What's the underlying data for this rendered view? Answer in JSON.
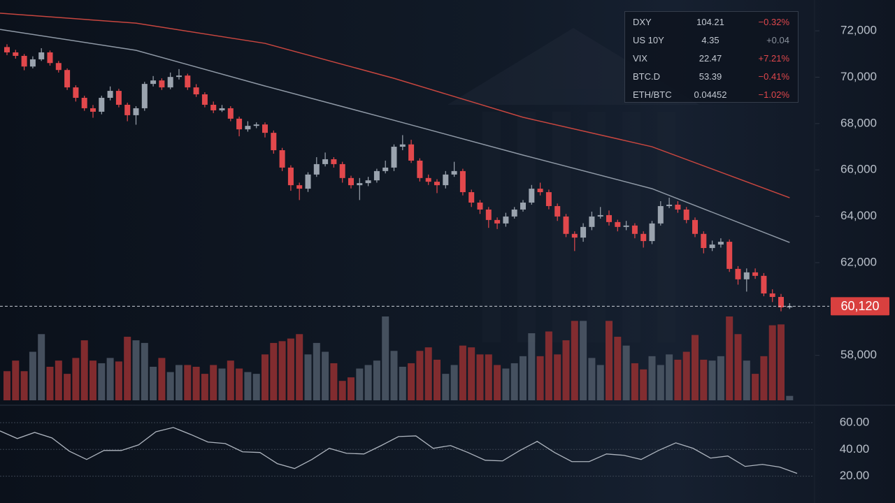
{
  "chart_data": [
    {
      "type": "candlestick",
      "open": [
        71300,
        71070,
        70920,
        70460,
        70770,
        71070,
        70610,
        70310,
        69560,
        69110,
        68660,
        68510,
        69110,
        69410,
        68810,
        68360,
        68660,
        69710,
        69860,
        69560,
        70010,
        70070,
        69560,
        69260,
        68810,
        68570,
        68660,
        68210,
        67750,
        67900,
        67960,
        67600,
        66850,
        66100,
        65340,
        65190,
        65800,
        66250,
        66460,
        66250,
        65650,
        65340,
        65430,
        65550,
        65950,
        66100,
        67000,
        67100,
        66400,
        65650,
        65490,
        65340,
        65800,
        65950,
        65040,
        64590,
        64290,
        63840,
        63690,
        63990,
        64290,
        64590,
        65190,
        65040,
        64440,
        63990,
        63240,
        63080,
        63540,
        63990,
        64050,
        63750,
        63540,
        63600,
        63240,
        62930,
        63690,
        64440,
        64500,
        64290,
        63840,
        63240,
        62630,
        62780,
        62900,
        61730,
        61280,
        61580,
        61430,
        60670,
        60520,
        60070
      ],
      "high": [
        71420,
        71180,
        71000,
        70900,
        71250,
        71150,
        70700,
        70380,
        69650,
        69200,
        68800,
        69200,
        69600,
        69500,
        68900,
        68750,
        69800,
        70050,
        69950,
        70200,
        70350,
        70150,
        69700,
        69350,
        68950,
        68800,
        68750,
        68300,
        68100,
        68050,
        68050,
        67700,
        66950,
        66200,
        65450,
        65900,
        66550,
        66750,
        66550,
        66350,
        65750,
        65650,
        65700,
        66050,
        66400,
        67100,
        67500,
        67300,
        66500,
        65800,
        65600,
        65950,
        66350,
        66050,
        65150,
        64700,
        64400,
        63950,
        64150,
        64400,
        64700,
        65350,
        65450,
        65150,
        64550,
        64100,
        63350,
        63700,
        64200,
        64400,
        64250,
        63850,
        63800,
        63700,
        63350,
        63800,
        64650,
        64800,
        64650,
        64400,
        63950,
        63350,
        62950,
        63050,
        63000,
        61850,
        61750,
        61750,
        61550,
        60850,
        60650,
        60250
      ],
      "low": [
        70950,
        70800,
        70300,
        70380,
        70700,
        70500,
        70200,
        69450,
        68950,
        68550,
        68250,
        68400,
        69000,
        68700,
        68100,
        67950,
        68550,
        69600,
        69450,
        69480,
        69900,
        69450,
        69150,
        68700,
        68450,
        68500,
        68100,
        67450,
        67650,
        67800,
        67400,
        66700,
        65950,
        65100,
        64700,
        65050,
        65700,
        66150,
        66100,
        65450,
        65200,
        64700,
        65300,
        65450,
        65850,
        65950,
        66850,
        66300,
        65500,
        65350,
        65000,
        65200,
        65700,
        64900,
        64400,
        64100,
        63500,
        63450,
        63550,
        63900,
        64200,
        64500,
        64900,
        64300,
        63800,
        63100,
        62500,
        62900,
        63400,
        63900,
        63600,
        63350,
        63400,
        63050,
        62650,
        62800,
        63600,
        64350,
        64150,
        63700,
        63100,
        62400,
        62500,
        62650,
        61600,
        61050,
        60750,
        61300,
        60550,
        60300,
        59900,
        60000
      ],
      "close": [
        71070,
        70920,
        70460,
        70770,
        71070,
        70610,
        70310,
        69560,
        69110,
        68660,
        68510,
        69110,
        69410,
        68810,
        68360,
        68660,
        69710,
        69860,
        69560,
        70010,
        70070,
        69560,
        69260,
        68810,
        68570,
        68660,
        68210,
        67750,
        67900,
        67960,
        67600,
        66850,
        66100,
        65340,
        65190,
        65800,
        66250,
        66460,
        66250,
        65650,
        65340,
        65430,
        65550,
        65950,
        66100,
        67000,
        67100,
        66400,
        65650,
        65490,
        65340,
        65800,
        65950,
        65040,
        64590,
        64290,
        63840,
        63690,
        63990,
        64290,
        64590,
        65190,
        65040,
        64440,
        63990,
        63240,
        63080,
        63540,
        63990,
        64050,
        63750,
        63540,
        63600,
        63240,
        62930,
        63690,
        64440,
        64500,
        64290,
        63840,
        63240,
        62630,
        62780,
        62900,
        61730,
        61280,
        61580,
        61430,
        60670,
        60520,
        60070,
        60120
      ],
      "volume": [
        33,
        45,
        33,
        55,
        75,
        38,
        45,
        30,
        48,
        68,
        45,
        42,
        48,
        44,
        72,
        68,
        65,
        38,
        48,
        32,
        40,
        40,
        38,
        30,
        40,
        36,
        45,
        36,
        32,
        30,
        52,
        65,
        67,
        70,
        75,
        52,
        65,
        55,
        42,
        22,
        26,
        36,
        40,
        45,
        95,
        56,
        38,
        42,
        56,
        60,
        46,
        30,
        40,
        62,
        60,
        52,
        52,
        40,
        36,
        42,
        50,
        76,
        50,
        78,
        52,
        68,
        90,
        90,
        48,
        40,
        90,
        72,
        62,
        42,
        35,
        50,
        40,
        52,
        46,
        55,
        74,
        46,
        45,
        50,
        95,
        75,
        45,
        30,
        50,
        85,
        86,
        5
      ],
      "up_color": "#9aa3ae",
      "down_color": "#e2484c",
      "up_volume_color": "#4b5665",
      "down_volume_color": "#8e2f31",
      "ylim": [
        55850,
        73330
      ],
      "yticks": [
        {
          "value": 58000,
          "label": "58,000"
        },
        {
          "value": 62000,
          "label": "62,000"
        },
        {
          "value": 64000,
          "label": "64,000"
        },
        {
          "value": 66000,
          "label": "66,000"
        },
        {
          "value": 68000,
          "label": "68,000"
        },
        {
          "value": 70000,
          "label": "70,000"
        },
        {
          "value": 72000,
          "label": "72,000"
        }
      ],
      "moving_averages": [
        {
          "color": "#c8463f",
          "x": [
            0,
            15,
            30,
            45,
            60,
            75,
            91
          ],
          "values": [
            72760,
            72330,
            71460,
            69950,
            68270,
            67000,
            64800
          ]
        },
        {
          "color": "#8f99a6",
          "x": [
            0,
            15,
            30,
            45,
            60,
            75,
            91
          ],
          "values": [
            72060,
            71160,
            69620,
            68140,
            66640,
            65190,
            62870
          ]
        }
      ],
      "last_price": {
        "value": 60120,
        "label": "60,120"
      },
      "last_price_color": "#d9403f"
    },
    {
      "type": "line",
      "values": [
        53.8,
        48.1,
        52.7,
        48.6,
        38.7,
        32.5,
        39.2,
        39.2,
        43.4,
        53.2,
        56.4,
        51.2,
        45.5,
        44.4,
        38.2,
        37.7,
        29.4,
        25.7,
        32.5,
        40.8,
        37.1,
        36.6,
        42.9,
        49.6,
        50.1,
        40.8,
        42.9,
        37.7,
        31.9,
        31.4,
        39.2,
        46.0,
        37.7,
        30.9,
        30.9,
        36.6,
        35.6,
        32.5,
        39.2,
        44.9,
        40.8,
        33.5,
        35.1,
        27.3,
        28.8,
        26.8,
        22.1
      ],
      "color": "#aeb5bf",
      "ylim": [
        1,
        72
      ],
      "yticks": [
        {
          "value": 20,
          "label": "20.00"
        },
        {
          "value": 40,
          "label": "40.00"
        },
        {
          "value": 60,
          "label": "60.00"
        }
      ],
      "grid": true
    }
  ],
  "watchlist": {
    "rows": [
      {
        "symbol": "DXY",
        "value": "104.21",
        "change": "−0.32%",
        "change_color": "#e0474c"
      },
      {
        "symbol": "US 10Y",
        "value": "4.35",
        "change": "+0.04",
        "change_color": "#8a929d"
      },
      {
        "symbol": "VIX",
        "value": "22.47",
        "change": "+7.21%",
        "change_color": "#e0474c"
      },
      {
        "symbol": "BTC.D",
        "value": "53.39",
        "change": "−0.41%",
        "change_color": "#e0474c"
      },
      {
        "symbol": "ETH/BTC",
        "value": "0.04452",
        "change": "−1.02%",
        "change_color": "#e0474c"
      }
    ]
  }
}
